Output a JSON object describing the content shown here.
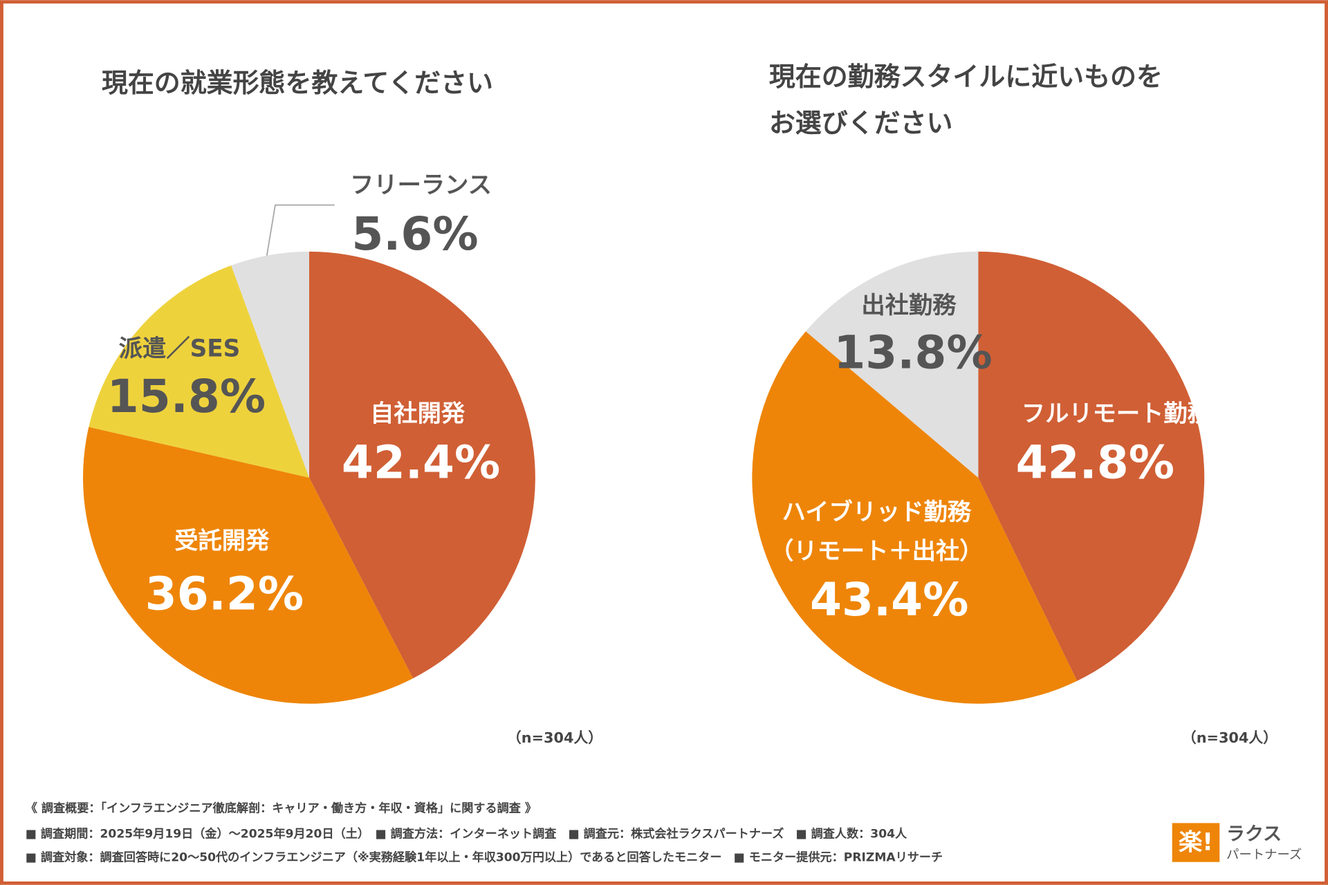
{
  "chart_data": [
    {
      "type": "pie",
      "title": "現在の就業形態を教えてください",
      "categories": [
        "自社開発",
        "受託開発",
        "派遣／SES",
        "フリーランス"
      ],
      "values": [
        42.4,
        36.2,
        15.8,
        5.6
      ],
      "value_labels": [
        "42.4%",
        "36.2%",
        "15.8%",
        "5.6%"
      ],
      "colors": [
        "#d05f35",
        "#ee8508",
        "#eed23c",
        "#e0e0e0"
      ],
      "note": "（n=304人）"
    },
    {
      "type": "pie",
      "title": "現在の勤務スタイルに近いものを\nお選びください",
      "categories": [
        "フルリモート勤務",
        "ハイブリッド勤務\n（リモート＋出社）",
        "出社勤務"
      ],
      "values": [
        42.8,
        43.4,
        13.8
      ],
      "value_labels": [
        "42.8%",
        "43.4%",
        "13.8%"
      ],
      "colors": [
        "#d05f35",
        "#ee8508",
        "#e0e0e0"
      ],
      "note": "（n=304人）"
    }
  ],
  "footer": [
    "《 調査概要：「インフラエンジニア徹底解剖：キャリア・働き方・年収・資格」に関する調査 》",
    "■ 調査期間：2025年9月19日（金）〜2025年9月20日（土）　■ 調査方法：インターネット調査　■ 調査元：株式会社ラクスパートナーズ　■ 調査人数：304人",
    "■ 調査対象：調査回答時に20〜50代のインフラエンジニア（※実務経験1年以上・年収300万円以上）であると回答したモニター　■ モニター提供元：PRIZMAリサーチ"
  ],
  "logo": {
    "mark": "楽!",
    "name": "ラクス",
    "sub": "パートナーズ"
  }
}
